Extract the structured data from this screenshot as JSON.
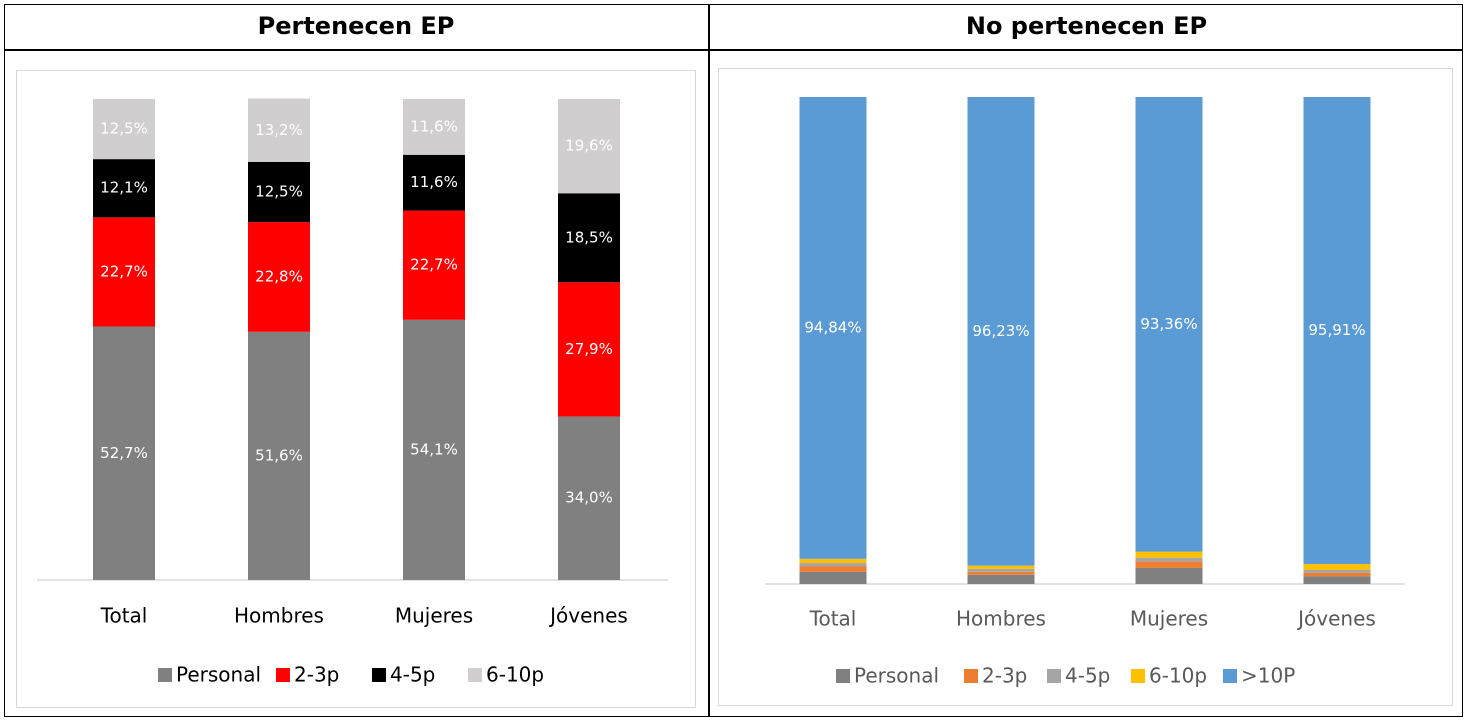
{
  "left_panel": {
    "title": "Pertenecen EP"
  },
  "right_panel": {
    "title": "No pertenecen EP"
  },
  "chart_data": [
    {
      "type": "bar",
      "stacked": true,
      "categories": [
        "Total",
        "Hombres",
        "Mujeres",
        "Jóvenes"
      ],
      "series": [
        {
          "name": "Personal",
          "color": "#808080",
          "values": [
            52.7,
            51.6,
            54.1,
            34.0
          ],
          "labels": [
            "52,7%",
            "51,6%",
            "54,1%",
            "34,0%"
          ]
        },
        {
          "name": "2-3p",
          "color": "#ff0000",
          "values": [
            22.7,
            22.8,
            22.7,
            27.9
          ],
          "labels": [
            "22,7%",
            "22,8%",
            "22,7%",
            "27,9%"
          ]
        },
        {
          "name": "4-5p",
          "color": "#000000",
          "values": [
            12.1,
            12.5,
            11.6,
            18.5
          ],
          "labels": [
            "12,1%",
            "12,5%",
            "11,6%",
            "18,5%"
          ]
        },
        {
          "name": "6-10p",
          "color": "#d0cece",
          "values": [
            12.5,
            13.2,
            11.6,
            19.6
          ],
          "labels": [
            "12,5%",
            "13,2%",
            "11,6%",
            "19,6%"
          ]
        }
      ],
      "legend_position": "bottom",
      "ylim": [
        0,
        100
      ]
    },
    {
      "type": "bar",
      "stacked": true,
      "categories": [
        "Total",
        "Hombres",
        "Mujeres",
        "Jóvenes"
      ],
      "series": [
        {
          "name": "Personal",
          "color": "#808080",
          "values": [
            2.5,
            1.9,
            3.3,
            1.6
          ]
        },
        {
          "name": "2-3p",
          "color": "#ed7d31",
          "values": [
            1.1,
            0.6,
            1.3,
            0.7
          ]
        },
        {
          "name": "4-5p",
          "color": "#a5a5a5",
          "values": [
            0.7,
            0.6,
            0.8,
            0.6
          ]
        },
        {
          "name": "6-10p",
          "color": "#ffc000",
          "values": [
            0.86,
            0.67,
            1.24,
            1.19
          ]
        },
        {
          "name": ">10P",
          "color": "#5b9bd5",
          "values": [
            94.84,
            96.23,
            93.36,
            95.91
          ],
          "labels": [
            "94,84%",
            "96,23%",
            "93,36%",
            "95,91%"
          ]
        }
      ],
      "legend_position": "bottom",
      "ylim": [
        0,
        100
      ]
    }
  ]
}
